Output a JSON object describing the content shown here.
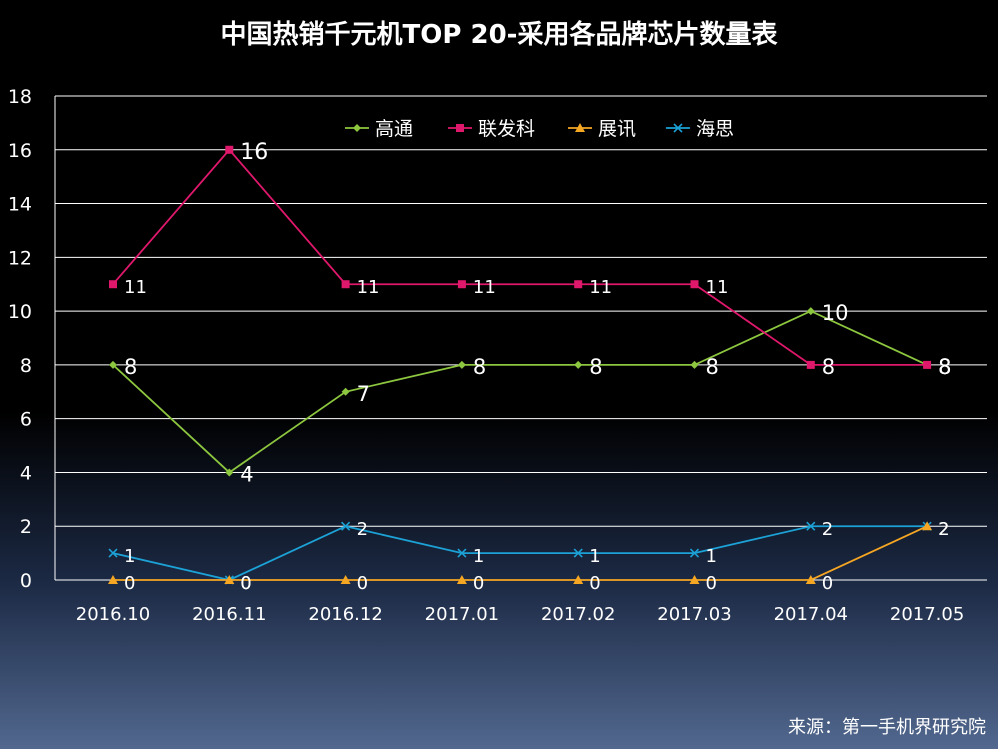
{
  "chart_data": {
    "type": "line",
    "title": "中国热销千元机TOP 20-采用各品牌芯片数量表",
    "categories": [
      "2016.10",
      "2016.11",
      "2016.12",
      "2017.01",
      "2017.02",
      "2017.03",
      "2017.04",
      "2017.05"
    ],
    "series": [
      {
        "name": "高通",
        "values": [
          8,
          4,
          7,
          8,
          8,
          8,
          10,
          8
        ],
        "color": "#8dc63f",
        "marker": "diamond"
      },
      {
        "name": "联发科",
        "values": [
          11,
          16,
          11,
          11,
          11,
          11,
          8,
          8
        ],
        "color": "#e0186c",
        "marker": "square"
      },
      {
        "name": "展讯",
        "values": [
          0,
          0,
          0,
          0,
          0,
          0,
          0,
          2
        ],
        "color": "#f5a623",
        "marker": "triangle"
      },
      {
        "name": "海思",
        "values": [
          1,
          0,
          2,
          1,
          1,
          1,
          2,
          2
        ],
        "color": "#1ca2d6",
        "marker": "x"
      }
    ],
    "ylim": [
      0,
      18
    ],
    "yticks": [
      "0",
      "2",
      "4",
      "6",
      "8",
      "10",
      "12",
      "14",
      "16",
      "18"
    ],
    "xlabel": "",
    "ylabel": "",
    "grid": true,
    "legend_position": "top-center",
    "source": "来源：第一手机界研究院"
  }
}
